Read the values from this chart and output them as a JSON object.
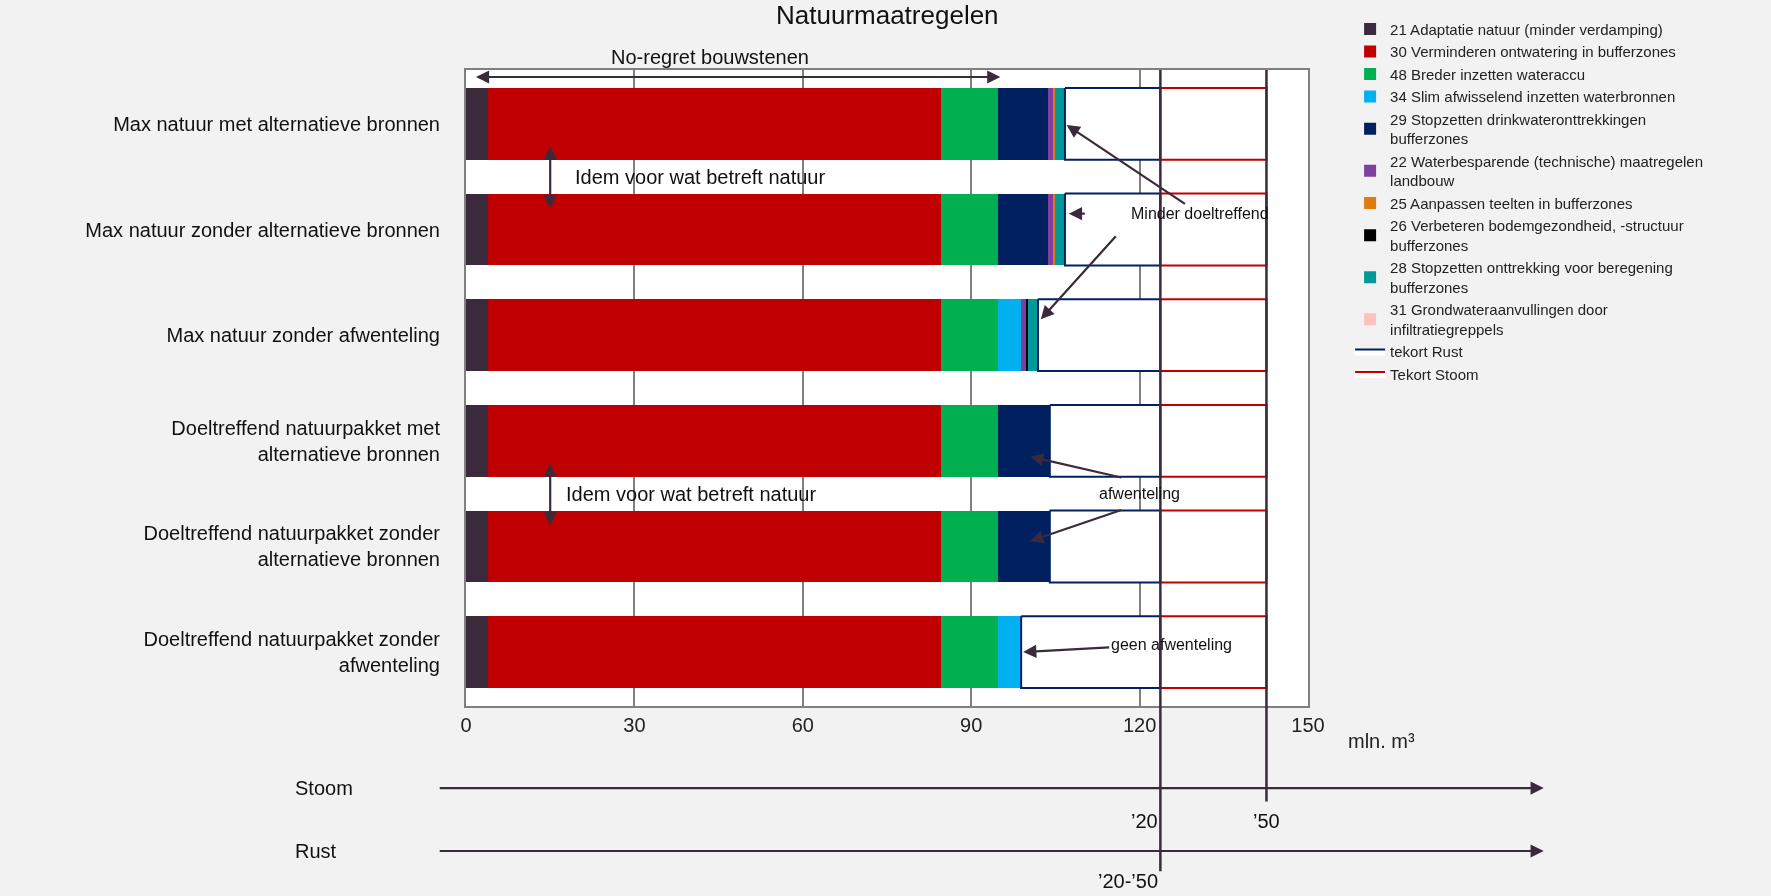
{
  "chart_data": {
    "type": "bar",
    "orientation": "horizontal",
    "stacked": true,
    "title": "Natuurmaatregelen",
    "xlabel": "mln. m³",
    "categories": [
      "Max natuur met alternatieve bronnen",
      "Max natuur zonder alternatieve bronnen",
      "Max natuur zonder afwenteling",
      "Doeltreffend natuurpakket met alternatieve bronnen",
      "Doeltreffend natuurpakket zonder alternatieve bronnen",
      "Doeltreffend natuurpakket zonder afwenteling"
    ],
    "series": [
      {
        "name": "21 Adaptatie natuur (minder verdamping)",
        "color": "#3b2a3b",
        "values": [
          3.9,
          3.9,
          3.9,
          3.9,
          3.9,
          3.9
        ]
      },
      {
        "name": "30 Verminderen ontwatering in bufferzones",
        "color": "#c00000",
        "values": [
          80.8,
          80.8,
          80.8,
          80.8,
          80.8,
          80.8
        ]
      },
      {
        "name": "48 Breder inzetten wateraccu",
        "color": "#00b050",
        "values": [
          10.0,
          10.0,
          10.0,
          10.0,
          10.0,
          10.0
        ]
      },
      {
        "name": "34 Slim afwisselend inzetten waterbronnen",
        "color": "#00b0f0",
        "values": [
          null,
          null,
          4.2,
          null,
          null,
          4.2
        ]
      },
      {
        "name": "29 Stopzetten drinkwateronttrekkingen bufferzones",
        "color": "#002060",
        "values": [
          8.9,
          8.9,
          null,
          9.3,
          9.3,
          null
        ]
      },
      {
        "name": "22 Waterbesparende (technische) maatregelen landbouw",
        "color": "#7f3fa0",
        "values": [
          1.1,
          1.1,
          1.0,
          null,
          null,
          null
        ]
      },
      {
        "name": "25 Aanpassen teelten in bufferzones",
        "color": "#e07b0f",
        "values": [
          0.3,
          0.3,
          null,
          null,
          null,
          null
        ]
      },
      {
        "name": "26 Verbeteren bodemgezondheid, -structuur bufferzones",
        "color": "#000000",
        "values": [
          null,
          null,
          0.3,
          null,
          null,
          null
        ]
      },
      {
        "name": "28 Stopzetten onttrekking voor beregening bufferzones",
        "color": "#009999",
        "values": [
          1.7,
          1.7,
          1.7,
          null,
          null,
          null
        ]
      },
      {
        "name": "31 Grondwateraanvullingen door infiltratiegreppels",
        "color": "#ffc0c0",
        "values": [
          null,
          null,
          null,
          null,
          null,
          null
        ]
      },
      {
        "name": "tekort Rust",
        "color": "#002060",
        "line_style": "solid",
        "values": [
          17.0,
          17.0,
          21.8,
          19.7,
          19.7,
          24.8
        ]
      },
      {
        "name": "Tekort Stoom",
        "color": "#c00000",
        "line_style": "solid",
        "values": [
          18.9,
          18.9,
          18.9,
          18.9,
          18.9,
          18.9
        ]
      }
    ],
    "xlim": [
      0,
      150
    ],
    "xticks": [
      0,
      30,
      60,
      90,
      120,
      150
    ],
    "grid": "x",
    "legend": "right",
    "ref_lines": [
      {
        "axis": "x",
        "value": 123.7,
        "label": "’20"
      },
      {
        "axis": "x",
        "value": 142.6,
        "label": "’50"
      }
    ],
    "annotations": [
      "No-regret bouwstenen",
      "Idem voor wat betreft natuur",
      {
        "text": "Minder doeltreffend",
        "x": 106.7,
        "y": "Max natuur met alternatieve bronnen"
      },
      "Idem voor wat betreft natuur",
      "afwenteling",
      {
        "text": "geen afwenteling",
        "x": 98.9,
        "y": "Doeltreffend natuurpakket zonder afwenteling"
      },
      "Stoom",
      "Rust",
      "’20-’50"
    ]
  }
}
